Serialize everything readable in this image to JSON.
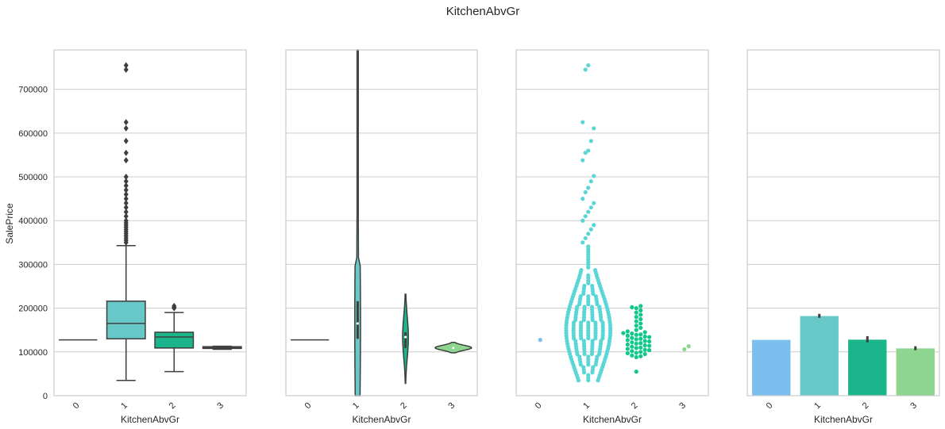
{
  "figure": {
    "title": "KitchenAbvGr",
    "colors": {
      "0": "#7abfee",
      "1": "#68c8c8",
      "2": "#1bb58b",
      "3": "#8ed68f",
      "swarm1": "#5bd6d6",
      "swarm2": "#10c78c",
      "dark": "#3e3e3e",
      "grid": "#cccccc"
    }
  },
  "chart_data": [
    {
      "type": "box",
      "xlabel": "KitchenAbvGr",
      "ylabel": "SalePrice",
      "categories": [
        "0",
        "1",
        "2",
        "3"
      ],
      "ylim": [
        0,
        790000
      ],
      "yticks": [
        0,
        100000,
        200000,
        300000,
        400000,
        500000,
        600000,
        700000
      ],
      "grid": true,
      "boxes": [
        {
          "cat": "0",
          "min": 127500,
          "q1": 127500,
          "median": 127500,
          "q3": 127500,
          "max": 127500,
          "outliers": []
        },
        {
          "cat": "1",
          "min": 34900,
          "q1": 130000,
          "median": 165000,
          "q3": 216000,
          "max": 343000,
          "outliers": [
            350000,
            355000,
            360000,
            365000,
            370000,
            375000,
            380000,
            385000,
            390000,
            395000,
            400000,
            410000,
            420000,
            430000,
            440000,
            450000,
            460000,
            470000,
            480000,
            490000,
            500000,
            538000,
            555000,
            582000,
            611000,
            625000,
            745000,
            755000
          ]
        },
        {
          "cat": "2",
          "min": 55000,
          "q1": 109000,
          "median": 134000,
          "q3": 145000,
          "max": 190000,
          "outliers": [
            200000,
            202000,
            205000
          ]
        },
        {
          "cat": "3",
          "min": 106000,
          "q1": 108000,
          "median": 109500,
          "q3": 112000,
          "max": 113000,
          "outliers": []
        }
      ]
    },
    {
      "type": "violin",
      "xlabel": "KitchenAbvGr",
      "categories": [
        "0",
        "1",
        "2",
        "3"
      ],
      "ylim": [
        0,
        790000
      ],
      "grid": true,
      "violins": [
        {
          "cat": "0",
          "center": 127500,
          "min": 127500,
          "max": 127500,
          "halfwidth": 0.4
        },
        {
          "cat": "1",
          "min": 0,
          "max": 790000,
          "median": 165000,
          "q1": 130000,
          "q3": 216000,
          "halfwidth": 0.02
        },
        {
          "cat": "2",
          "min": 28000,
          "max": 232000,
          "median": 134000,
          "q1": 109000,
          "q3": 145000,
          "halfwidth": 0.06
        },
        {
          "cat": "3",
          "min": 98000,
          "max": 122000,
          "median": 109500,
          "q1": 108000,
          "q3": 112000,
          "halfwidth": 0.38
        }
      ]
    },
    {
      "type": "swarm",
      "xlabel": "KitchenAbvGr",
      "categories": [
        "0",
        "1",
        "2",
        "3"
      ],
      "ylim": [
        0,
        790000
      ],
      "grid": true,
      "groups": [
        {
          "cat": "0",
          "values": [
            127500
          ]
        },
        {
          "cat": "1",
          "range": [
            35000,
            345000
          ],
          "max_halfwidth": 0.46,
          "extra": [
            350000,
            360000,
            370000,
            380000,
            390000,
            400000,
            410000,
            420000,
            430000,
            440000,
            450000,
            465000,
            475000,
            490000,
            502000,
            538000,
            555000,
            560000,
            582000,
            611000,
            625000,
            745000,
            755000
          ]
        },
        {
          "cat": "2",
          "values": [
            55000,
            88000,
            90000,
            92000,
            95000,
            97000,
            98000,
            100000,
            102000,
            104000,
            105000,
            107000,
            109000,
            110000,
            112000,
            114000,
            115000,
            117000,
            119000,
            120000,
            122000,
            124000,
            125000,
            127000,
            129000,
            130000,
            132000,
            134000,
            135000,
            137000,
            139000,
            140000,
            142000,
            143000,
            145000,
            147000,
            150000,
            155000,
            160000,
            165000,
            170000,
            175000,
            180000,
            185000,
            190000,
            195000,
            200000,
            202000,
            205000
          ]
        },
        {
          "cat": "3",
          "values": [
            106000,
            113000
          ]
        }
      ]
    },
    {
      "type": "bar",
      "xlabel": "KitchenAbvGr",
      "categories": [
        "0",
        "1",
        "2",
        "3"
      ],
      "values": [
        127500,
        182000,
        128000,
        108000
      ],
      "errors": [
        [
          127500,
          127500
        ],
        [
          178000,
          187000
        ],
        [
          122000,
          136000
        ],
        [
          104000,
          113000
        ]
      ],
      "ylim": [
        0,
        790000
      ],
      "grid": true
    }
  ]
}
